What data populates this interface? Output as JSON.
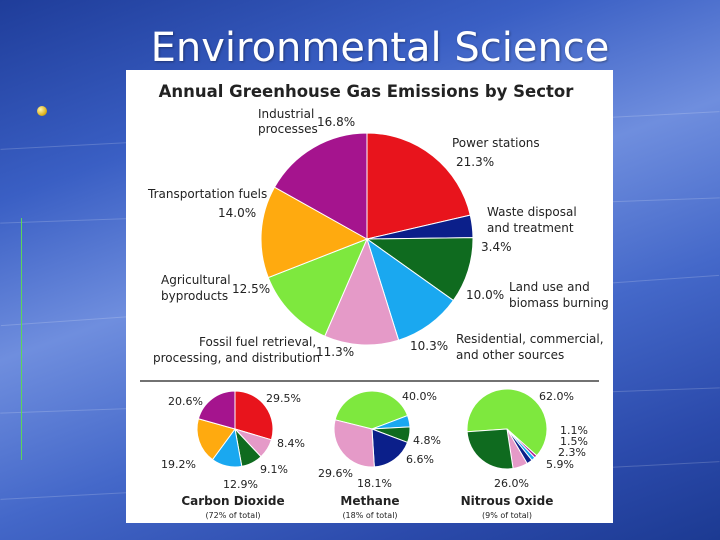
{
  "slide": {
    "title": "Environmental Science"
  },
  "chart_data": [
    {
      "type": "pie",
      "title": "Annual Greenhouse Gas Emissions by Sector",
      "slices": [
        {
          "label": "Power stations",
          "value": 21.3,
          "value_label": "21.3%",
          "color": "#e8141c"
        },
        {
          "label": "Waste disposal and treatment",
          "value": 3.4,
          "value_label": "3.4%",
          "color": "#0b1f8a"
        },
        {
          "label": "Land use and biomass burning",
          "value": 10.0,
          "value_label": "10.0%",
          "color": "#0f6b1f"
        },
        {
          "label": "Residential, commercial, and other sources",
          "value": 10.3,
          "value_label": "10.3%",
          "color": "#1aa8f0"
        },
        {
          "label": "Fossil fuel retrieval, processing, and distribution",
          "value": 11.3,
          "value_label": "11.3%",
          "color": "#e59ac8"
        },
        {
          "label": "Agricultural byproducts",
          "value": 12.5,
          "value_label": "12.5%",
          "color": "#7ee83e"
        },
        {
          "label": "Transportation fuels",
          "value": 14.0,
          "value_label": "14.0%",
          "color": "#ffaa0f"
        },
        {
          "label": "Industrial processes",
          "value": 16.8,
          "value_label": "16.8%",
          "color": "#a5148e"
        }
      ]
    },
    {
      "type": "pie",
      "title": "Carbon Dioxide",
      "subtitle": "(72% of total)",
      "slices": [
        {
          "value": 29.5,
          "value_label": "29.5%",
          "color": "#e8141c"
        },
        {
          "value": 8.4,
          "value_label": "8.4%",
          "color": "#e59ac8"
        },
        {
          "value": 9.1,
          "value_label": "9.1%",
          "color": "#0f6b1f"
        },
        {
          "value": 12.9,
          "value_label": "12.9%",
          "color": "#1aa8f0"
        },
        {
          "value": 19.2,
          "value_label": "19.2%",
          "color": "#ffaa0f"
        },
        {
          "value": 20.6,
          "value_label": "20.6%",
          "color": "#a5148e"
        }
      ]
    },
    {
      "type": "pie",
      "title": "Methane",
      "subtitle": "(18% of total)",
      "slices": [
        {
          "value": 40.0,
          "value_label": "40.0%",
          "color": "#7ee83e"
        },
        {
          "value": 4.8,
          "value_label": "4.8%",
          "color": "#1aa8f0"
        },
        {
          "value": 6.6,
          "value_label": "6.6%",
          "color": "#0f6b1f"
        },
        {
          "value": 18.1,
          "value_label": "18.1%",
          "color": "#0b1f8a"
        },
        {
          "value": 29.6,
          "value_label": "29.6%",
          "color": "#e59ac8"
        }
      ]
    },
    {
      "type": "pie",
      "title": "Nitrous Oxide",
      "subtitle": "(9% of total)",
      "slices": [
        {
          "value": 62.0,
          "value_label": "62.0%",
          "color": "#7ee83e"
        },
        {
          "value": 1.1,
          "value_label": "1.1%",
          "color": "#a5148e"
        },
        {
          "value": 1.5,
          "value_label": "1.5%",
          "color": "#1aa8f0"
        },
        {
          "value": 2.3,
          "value_label": "2.3%",
          "color": "#0b1f8a"
        },
        {
          "value": 5.9,
          "value_label": "5.9%",
          "color": "#e59ac8"
        },
        {
          "value": 26.0,
          "value_label": "26.0%",
          "color": "#0f6b1f"
        }
      ]
    }
  ]
}
